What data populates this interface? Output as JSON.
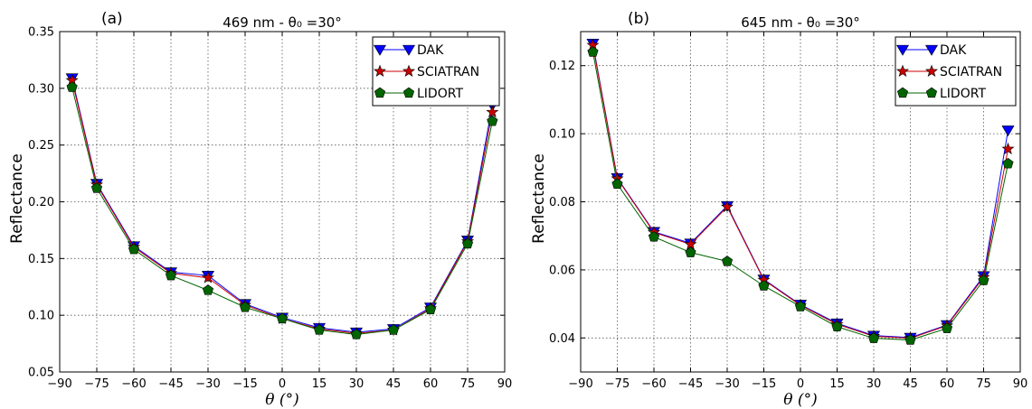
{
  "chart_data": [
    {
      "type": "line",
      "panel_label": "(a)",
      "title": "469 nm - θ₀ =30°",
      "xlabel": "θ (°)",
      "ylabel": "Reflectance",
      "xlim": [
        -90,
        90
      ],
      "ylim": [
        0.05,
        0.35
      ],
      "xticks": [
        -90,
        -75,
        -60,
        -45,
        -30,
        -15,
        0,
        15,
        30,
        45,
        60,
        75,
        90
      ],
      "yticks": [
        0.05,
        0.1,
        0.15,
        0.2,
        0.25,
        0.3,
        0.35
      ],
      "ytick_decimals": 2,
      "grid": true,
      "legend_position": "top-right",
      "x": [
        -85,
        -75,
        -60,
        -45,
        -30,
        -15,
        0,
        15,
        30,
        45,
        60,
        75,
        85
      ],
      "series": [
        {
          "name": "DAK",
          "color": "#0000ff",
          "marker": "triangle-down",
          "values": [
            0.309,
            0.216,
            0.161,
            0.138,
            0.135,
            0.11,
            0.098,
            0.089,
            0.085,
            0.088,
            0.107,
            0.166,
            0.285
          ]
        },
        {
          "name": "SCIATRAN",
          "color": "#cc0000",
          "marker": "star",
          "values": [
            0.307,
            0.215,
            0.16,
            0.137,
            0.133,
            0.109,
            0.097,
            0.088,
            0.084,
            0.087,
            0.106,
            0.165,
            0.279
          ]
        },
        {
          "name": "LIDORT",
          "color": "#006400",
          "marker": "pentagon",
          "values": [
            0.301,
            0.212,
            0.158,
            0.135,
            0.122,
            0.107,
            0.097,
            0.087,
            0.083,
            0.087,
            0.105,
            0.163,
            0.271
          ]
        }
      ]
    },
    {
      "type": "line",
      "panel_label": "(b)",
      "title": "645 nm - θ₀ =30°",
      "xlabel": "θ (°)",
      "ylabel": "Reflectance",
      "xlim": [
        -90,
        90
      ],
      "ylim": [
        0.03,
        0.13
      ],
      "xticks": [
        -90,
        -75,
        -60,
        -45,
        -30,
        -15,
        0,
        15,
        30,
        45,
        60,
        75,
        90
      ],
      "yticks": [
        0.04,
        0.06,
        0.08,
        0.1,
        0.12
      ],
      "ytick_decimals": 2,
      "grid": true,
      "legend_position": "top-right",
      "x": [
        -85,
        -75,
        -60,
        -45,
        -30,
        -15,
        0,
        15,
        30,
        45,
        60,
        75,
        85
      ],
      "series": [
        {
          "name": "DAK",
          "color": "#0000ff",
          "marker": "triangle-down",
          "values": [
            0.1265,
            0.087,
            0.0712,
            0.0678,
            0.0788,
            0.0572,
            0.0498,
            0.0443,
            0.0407,
            0.0401,
            0.0438,
            0.0582,
            0.101
          ]
        },
        {
          "name": "SCIATRAN",
          "color": "#cc0000",
          "marker": "star",
          "values": [
            0.126,
            0.0868,
            0.071,
            0.0675,
            0.0785,
            0.057,
            0.0496,
            0.044,
            0.0405,
            0.0399,
            0.0436,
            0.0578,
            0.0955
          ]
        },
        {
          "name": "LIDORT",
          "color": "#006400",
          "marker": "pentagon",
          "values": [
            0.124,
            0.0852,
            0.0697,
            0.0651,
            0.0625,
            0.0553,
            0.0492,
            0.0433,
            0.0399,
            0.0394,
            0.0428,
            0.0569,
            0.0912
          ]
        }
      ]
    }
  ]
}
